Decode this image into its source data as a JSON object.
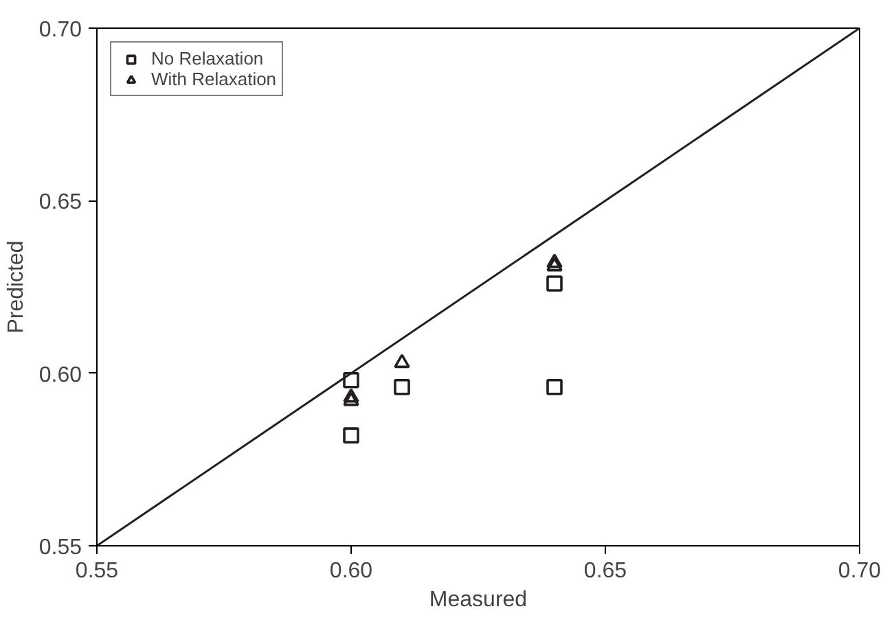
{
  "chart_data": {
    "type": "scatter",
    "xlabel": "Measured",
    "ylabel": "Predicted",
    "xlim": [
      0.55,
      0.7
    ],
    "ylim": [
      0.55,
      0.7
    ],
    "xticks": [
      {
        "value": 0.55,
        "label": "0.55"
      },
      {
        "value": 0.6,
        "label": "0.60"
      },
      {
        "value": 0.65,
        "label": "0.65"
      },
      {
        "value": 0.7,
        "label": "0.70"
      }
    ],
    "yticks": [
      {
        "value": 0.55,
        "label": "0.55"
      },
      {
        "value": 0.6,
        "label": "0.60"
      },
      {
        "value": 0.65,
        "label": "0.65"
      },
      {
        "value": 0.7,
        "label": "0.70"
      }
    ],
    "grid": false,
    "legend": "top left",
    "series": [
      {
        "name": "No Relaxation",
        "color": "#231f20",
        "marker": "square",
        "x": [
          0.6,
          0.6,
          0.61,
          0.64,
          0.64
        ],
        "values": [
          0.598,
          0.582,
          0.596,
          0.626,
          0.596
        ]
      },
      {
        "name": "With Relaxation",
        "color": "#231f20",
        "marker": "triangle",
        "x": [
          0.6,
          0.6,
          0.61,
          0.64,
          0.64
        ],
        "values": [
          0.593,
          0.592,
          0.603,
          0.632,
          0.631
        ]
      },
      {
        "type": "line",
        "color": "#231f20",
        "x": [
          0.55,
          0.7
        ],
        "values": [
          0.55,
          0.7
        ]
      }
    ]
  }
}
